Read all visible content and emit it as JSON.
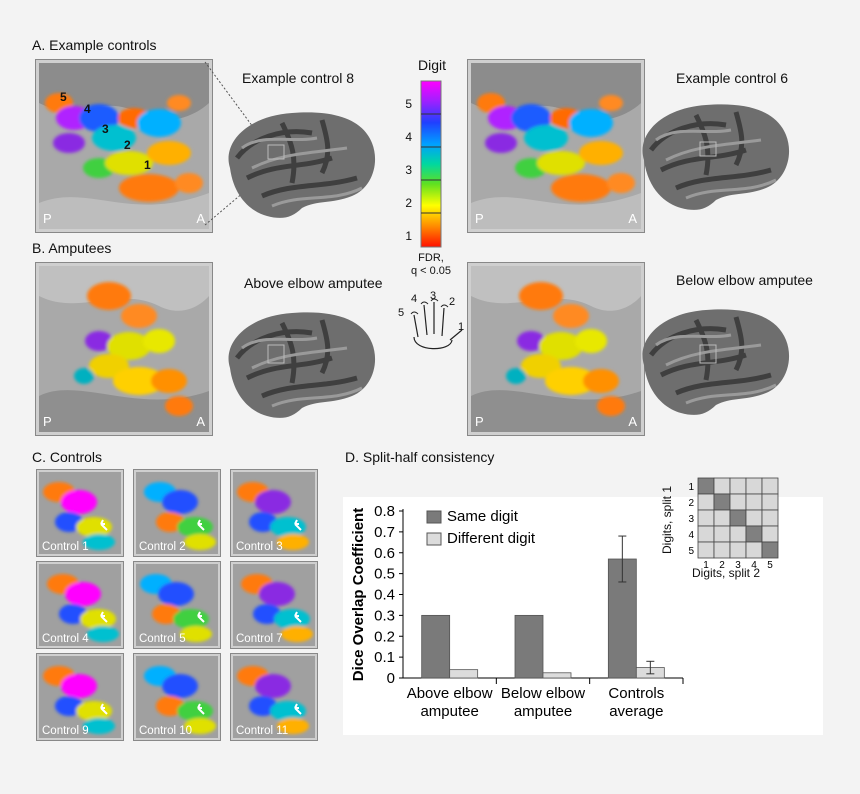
{
  "panels": {
    "a": {
      "title": "A. Example controls",
      "left_caption": "Example control 8",
      "right_caption": "Example control 6"
    },
    "b": {
      "title": "B. Amputees",
      "left_caption": "Above elbow amputee",
      "right_caption": "Below elbow amputee"
    },
    "c": {
      "title": "C. Controls"
    },
    "d": {
      "title": "D. Split-half consistency"
    }
  },
  "orientation": {
    "posterior": "P",
    "anterior": "A"
  },
  "digit_labels": [
    "1",
    "2",
    "3",
    "4",
    "5"
  ],
  "colorbar": {
    "title": "Digit",
    "ticks": [
      "5",
      "4",
      "3",
      "2",
      "1"
    ],
    "note_line1": "FDR,",
    "note_line2": "q < 0.05",
    "colors": [
      "#ff00ff",
      "#2060ff",
      "#00d8a0",
      "#ffff00",
      "#ff1000"
    ]
  },
  "hand_labels": [
    "1",
    "2",
    "3",
    "4",
    "5"
  ],
  "controls": [
    "Control 1",
    "Control 2",
    "Control 3",
    "Control 4",
    "Control 5",
    "Control 7",
    "Control 9",
    "Control 10",
    "Control 11"
  ],
  "matrix": {
    "ylabel": "Digits, split 1",
    "xlabel": "Digits, split 2",
    "row_labels": [
      "1",
      "2",
      "3",
      "4",
      "5"
    ],
    "col_labels": [
      "1",
      "2",
      "3",
      "4",
      "5"
    ]
  },
  "chart_data": {
    "type": "bar",
    "title": "",
    "ylabel": "Dice Overlap Coefficient",
    "xlabel": "",
    "ylim": [
      0,
      0.8
    ],
    "yticks": [
      "0",
      "0.1",
      "0.2",
      "0.3",
      "0.4",
      "0.5",
      "0.6",
      "0.7",
      "0.8"
    ],
    "categories": [
      {
        "line1": "Above elbow",
        "line2": "amputee"
      },
      {
        "line1": "Below elbow",
        "line2": "amputee"
      },
      {
        "line1": "Controls",
        "line2": "average"
      }
    ],
    "series": [
      {
        "name": "Same digit",
        "color": "#7a7a7a",
        "values": [
          0.3,
          0.3,
          0.57
        ],
        "errors": [
          null,
          null,
          0.11
        ]
      },
      {
        "name": "Different digit",
        "color": "#dcdcdc",
        "values": [
          0.04,
          0.025,
          0.05
        ],
        "errors": [
          null,
          null,
          0.03
        ]
      }
    ],
    "legend_position": "top-left"
  }
}
